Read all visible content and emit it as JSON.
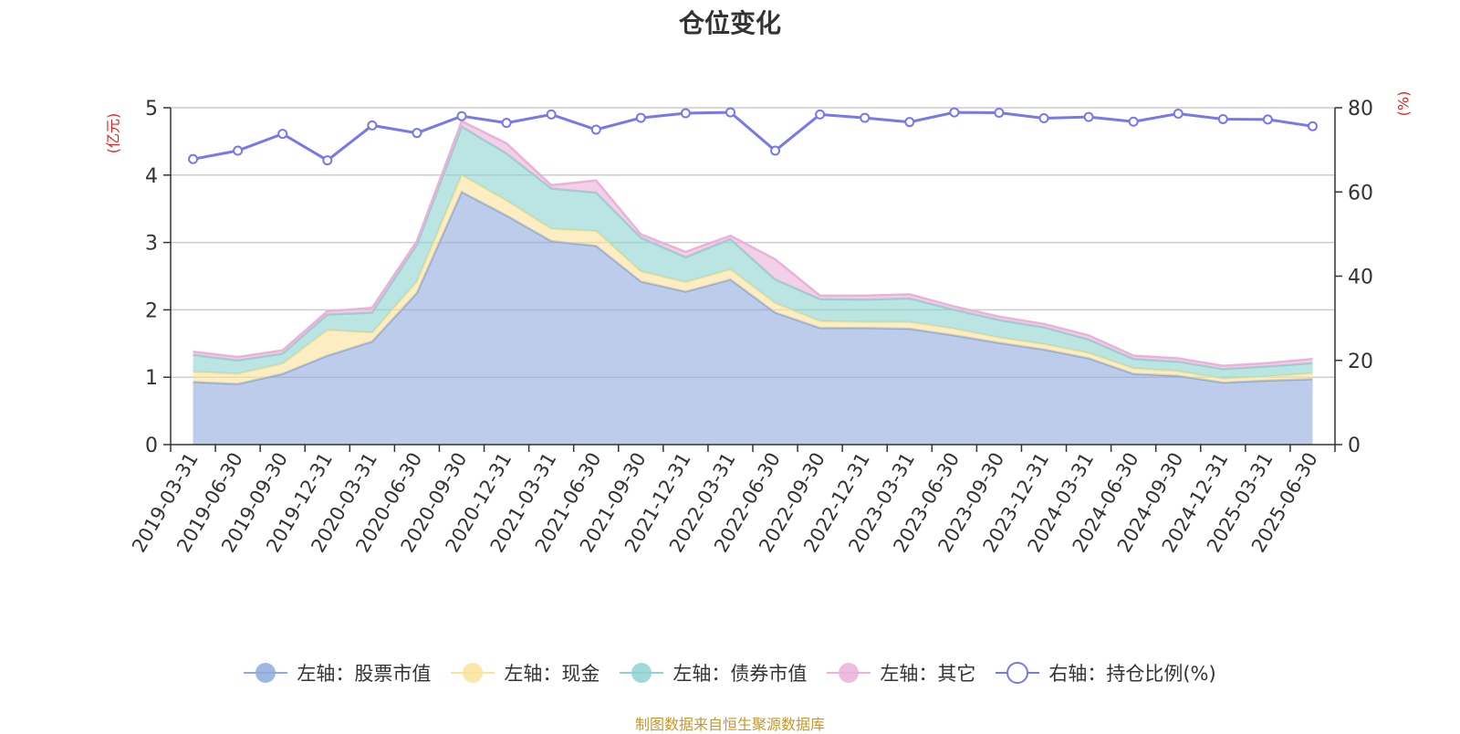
{
  "chart_data": {
    "type": "area",
    "title": "仓位变化",
    "y_left_unit": "(亿元)",
    "y_right_unit": "(%)",
    "y_left_lim": [
      0,
      5
    ],
    "y_left_ticks": [
      0,
      1,
      2,
      3,
      4,
      5
    ],
    "y_right_lim": [
      0,
      80
    ],
    "y_right_ticks": [
      0,
      20,
      40,
      60,
      80
    ],
    "grid": true,
    "legend_position": "bottom",
    "x_tick_labels": [
      "2019-03-31",
      "2019-06-30",
      "2019-09-30",
      "2019-12-31",
      "2020-03-31",
      "2020-06-30",
      "2020-09-30",
      "2020-12-31",
      "2021-03-31",
      "2021-06-30",
      "2021-09-30",
      "2021-12-31",
      "2022-03-31",
      "2022-06-30",
      "2022-09-30",
      "2022-12-31",
      "2023-03-31",
      "2023-06-30",
      "2023-09-30",
      "2023-12-31",
      "2024-03-31",
      "2024-06-30",
      "2024-09-30",
      "2024-12-31",
      "2025-03-31",
      "2025-06-30"
    ],
    "series": [
      {
        "name": "左轴：股票市值",
        "axis": "left",
        "stacked": true,
        "color": "#8faadc",
        "values": [
          0.93,
          0.9,
          1.05,
          1.32,
          1.53,
          2.25,
          3.75,
          3.4,
          3.02,
          2.95,
          2.42,
          2.27,
          2.45,
          1.96,
          1.73,
          1.73,
          1.72,
          1.62,
          1.51,
          1.41,
          1.28,
          1.05,
          1.02,
          0.92,
          0.95,
          0.97
        ]
      },
      {
        "name": "左轴：现金",
        "axis": "left",
        "stacked": true,
        "color": "#fae39a",
        "values": [
          0.15,
          0.15,
          0.15,
          0.38,
          0.13,
          0.17,
          0.25,
          0.22,
          0.18,
          0.22,
          0.15,
          0.14,
          0.15,
          0.14,
          0.1,
          0.09,
          0.1,
          0.1,
          0.08,
          0.08,
          0.08,
          0.08,
          0.07,
          0.06,
          0.06,
          0.09
        ]
      },
      {
        "name": "左轴：债券市值",
        "axis": "left",
        "stacked": true,
        "color": "#8ed3d1",
        "values": [
          0.25,
          0.2,
          0.15,
          0.23,
          0.3,
          0.55,
          0.72,
          0.7,
          0.6,
          0.57,
          0.5,
          0.37,
          0.45,
          0.35,
          0.33,
          0.33,
          0.35,
          0.28,
          0.26,
          0.25,
          0.2,
          0.14,
          0.14,
          0.14,
          0.15,
          0.15
        ]
      },
      {
        "name": "左轴：其它",
        "axis": "left",
        "stacked": true,
        "color": "#e9b2d8",
        "values": [
          0.05,
          0.05,
          0.05,
          0.05,
          0.07,
          0.05,
          0.08,
          0.15,
          0.05,
          0.18,
          0.05,
          0.08,
          0.05,
          0.3,
          0.05,
          0.06,
          0.06,
          0.05,
          0.05,
          0.05,
          0.06,
          0.05,
          0.05,
          0.05,
          0.05,
          0.06
        ]
      },
      {
        "name": "右轴：持仓比例(%)",
        "axis": "right",
        "type": "line",
        "color": "#7777ee",
        "values": [
          67.8,
          69.8,
          73.8,
          67.5,
          75.8,
          74.0,
          78.0,
          76.4,
          78.4,
          74.8,
          77.6,
          78.7,
          78.9,
          69.8,
          78.4,
          77.6,
          76.6,
          78.9,
          78.8,
          77.5,
          77.8,
          76.7,
          78.6,
          77.3,
          77.2,
          75.6
        ]
      }
    ]
  },
  "footer": {
    "source": "制图数据来自恒生聚源数据库"
  }
}
